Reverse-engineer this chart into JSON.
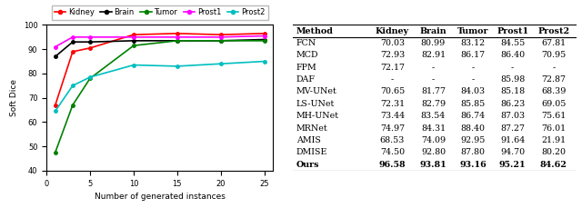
{
  "x_values": [
    1,
    3,
    5,
    10,
    15,
    20,
    25
  ],
  "lines": {
    "Kidney": {
      "y": [
        67,
        89,
        90.5,
        96,
        96.5,
        96,
        96.5
      ],
      "color": "#FF0000",
      "marker": "o"
    },
    "Brain": {
      "y": [
        87,
        93,
        93,
        93.5,
        93.5,
        93.5,
        94
      ],
      "color": "#000000",
      "marker": "o"
    },
    "Tumor": {
      "y": [
        47.5,
        67,
        78,
        91.5,
        93.5,
        93.5,
        93.5
      ],
      "color": "#008000",
      "marker": "o"
    },
    "Prost1": {
      "y": [
        91,
        95,
        95,
        95,
        95,
        95,
        95.5
      ],
      "color": "#FF00FF",
      "marker": "o"
    },
    "Prost2": {
      "y": [
        64.5,
        75,
        78.5,
        83.5,
        83,
        84,
        85
      ],
      "color": "#00BFBF",
      "marker": "o"
    }
  },
  "xlabel": "Number of generated instances",
  "ylabel": "Soft Dice",
  "ylim": [
    40,
    100
  ],
  "yticks": [
    40,
    50,
    60,
    70,
    80,
    90,
    100
  ],
  "xticks": [
    0,
    5,
    10,
    15,
    20,
    25
  ],
  "table_header": [
    "Method",
    "Kidney",
    "Brain",
    "Tumor",
    "Prost1",
    "Prost2"
  ],
  "table_rows": [
    [
      "FCN",
      "70.03",
      "80.99",
      "83.12",
      "84.55",
      "67.81"
    ],
    [
      "MCD",
      "72.93",
      "82.91",
      "86.17",
      "86.40",
      "70.95"
    ],
    [
      "FPM",
      "72.17",
      "-",
      "-",
      "-",
      "-"
    ],
    [
      "DAF",
      "-",
      "-",
      "-",
      "85.98",
      "72.87"
    ],
    [
      "MV-UNet",
      "70.65",
      "81.77",
      "84.03",
      "85.18",
      "68.39"
    ],
    [
      "LS-UNet",
      "72.31",
      "82.79",
      "85.85",
      "86.23",
      "69.05"
    ],
    [
      "MH-UNet",
      "73.44",
      "83.54",
      "86.74",
      "87.03",
      "75.61"
    ],
    [
      "MRNet",
      "74.97",
      "84.31",
      "88.40",
      "87.27",
      "76.01"
    ],
    [
      "AMIS",
      "68.53",
      "74.09",
      "92.95",
      "91.64",
      "21.91"
    ],
    [
      "DMISE",
      "74.50",
      "92.80",
      "87.80",
      "94.70",
      "80.20"
    ],
    [
      "Ours",
      "96.58",
      "93.81",
      "93.16",
      "95.21",
      "84.62"
    ]
  ],
  "bold_row": "Ours",
  "line_names_order": [
    "Kidney",
    "Brain",
    "Tumor",
    "Prost1",
    "Prost2"
  ]
}
